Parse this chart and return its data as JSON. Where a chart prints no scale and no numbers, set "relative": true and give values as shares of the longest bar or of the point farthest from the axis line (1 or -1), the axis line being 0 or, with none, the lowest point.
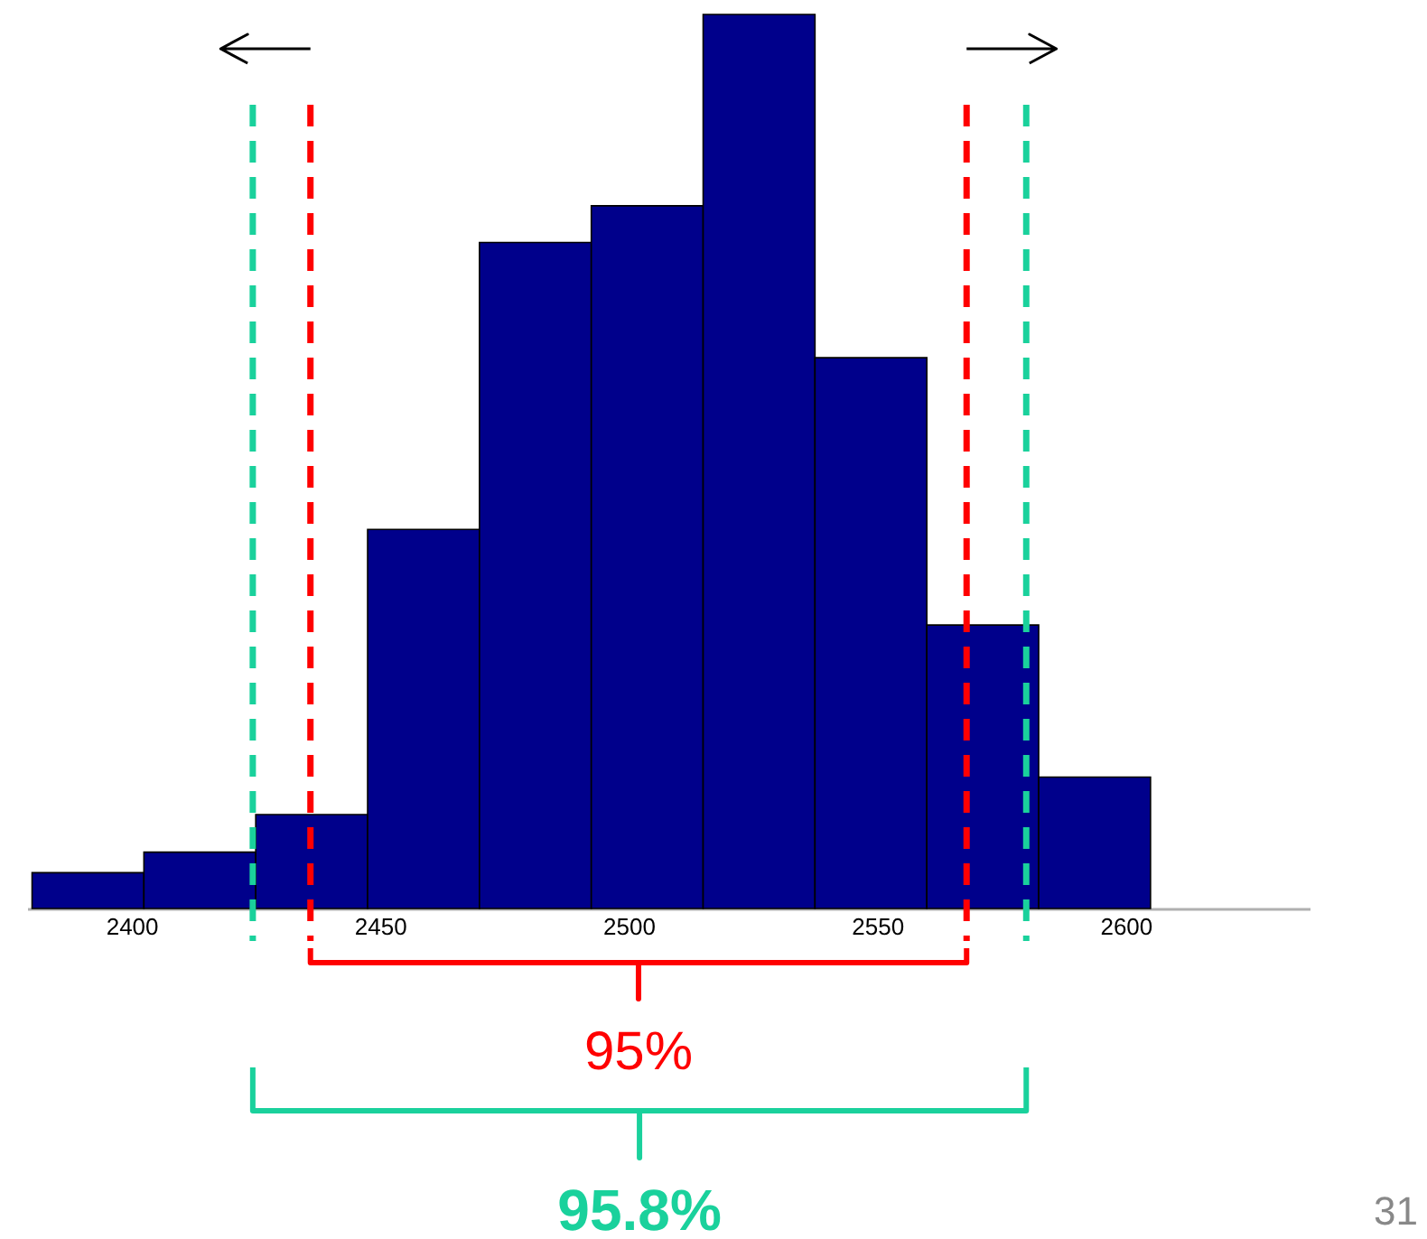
{
  "chart_data": {
    "type": "bar",
    "relative": true,
    "color": "#00008b",
    "x": [
      2391.25,
      2413.75,
      2436.25,
      2458.75,
      2481.25,
      2503.75,
      2526.25,
      2548.75,
      2571.25,
      2593.75
    ],
    "values": [
      0.04,
      0.063,
      0.105,
      0.424,
      0.745,
      0.786,
      1,
      0.616,
      0.317,
      0.147
    ],
    "xlim": [
      2379,
      2637
    ],
    "xticks": [
      2400,
      2450,
      2500,
      2550,
      2600
    ],
    "grid": false,
    "ref_lines": [
      {
        "axis": "x",
        "value": 2436,
        "color": "#ff0000",
        "line_style": "dashed"
      },
      {
        "axis": "x",
        "value": 2568,
        "color": "#ff0000",
        "line_style": "dashed"
      },
      {
        "axis": "x",
        "value": 2424.4,
        "color": "#1ad19c",
        "line_style": "dashed"
      },
      {
        "axis": "x",
        "value": 2580,
        "color": "#1ad19c",
        "line_style": "dashed"
      }
    ],
    "annotations": [
      "95%",
      "95.8%",
      "31"
    ]
  }
}
